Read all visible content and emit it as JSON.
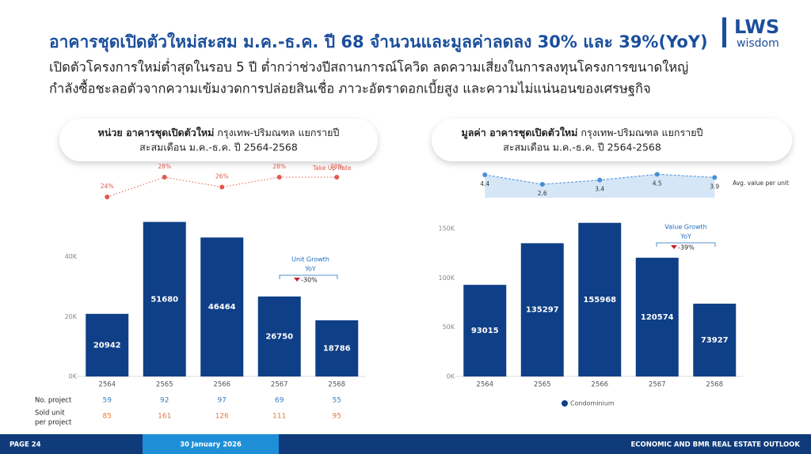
{
  "header": {
    "title": "อาคารชุดเปิดตัวใหม่สะสม ม.ค.-ธ.ค. ปี 68 จำนวนและมูลค่าลดลง 30% และ 39%(YoY)",
    "lines": [
      "เปิดตัวโครงการใหม่ต่ำสุดในรอบ 5 ปี ต่ำกว่าช่วงปีสถานการณ์โควิด ลดความเสี่ยงในการลงทุนโครงการขนาดใหญ่",
      "กำลังซื้อชะลอตัวจากความเข้มงวดการปล่อยสินเชื่อ ภาวะอัตราดอกเบี้ยสูง และความไม่แน่นอนของเศรษฐกิจ"
    ]
  },
  "logo": {
    "brand": "LWS",
    "sub": "wisdom"
  },
  "chart_data": [
    {
      "type": "bar",
      "title_bold": "หน่วย อาคารชุดเปิดตัวใหม่",
      "title": " กรุงเทพ-ปริมณฑล แยกรายปี",
      "subtitle": "สะสมเดือน ม.ค.-ธ.ค. ปี 2564-2568",
      "categories": [
        "2564",
        "2565",
        "2566",
        "2567",
        "2568"
      ],
      "values": [
        20942,
        51680,
        46464,
        26750,
        18786
      ],
      "color": "#0f3f86",
      "ylim": [
        0,
        55000
      ],
      "yticks": [
        {
          "value": 0,
          "label": "0K"
        },
        {
          "value": 20000,
          "label": "20K"
        },
        {
          "value": 40000,
          "label": "40K"
        }
      ],
      "line": {
        "name": "Take Up Rate",
        "color": "#e05a4e",
        "values": [
          24,
          28,
          26,
          28,
          28
        ],
        "value_labels": [
          "24%",
          "28%",
          "26%",
          "28%",
          "28%"
        ],
        "axis": "y2"
      },
      "y2lim": [
        22,
        30
      ],
      "annotation": {
        "lines": [
          "Unit Growth",
          "YoY"
        ],
        "change": "-30%"
      },
      "table": [
        {
          "label": [
            "No. project"
          ],
          "color": "#3a7fc1",
          "values": [
            59,
            92,
            97,
            69,
            55
          ]
        },
        {
          "label": [
            "Sold unit",
            "per project"
          ],
          "color": "#e07b39",
          "values": [
            85,
            161,
            126,
            111,
            95
          ]
        }
      ]
    },
    {
      "type": "bar",
      "title_bold": "มูลค่า อาคารชุดเปิดตัวใหม่",
      "title": " กรุงเทพ-ปริมณฑล แยกรายปี",
      "subtitle": "สะสมเดือน ม.ค.-ธ.ค. ปี 2564-2568",
      "categories": [
        "2564",
        "2565",
        "2566",
        "2567",
        "2568"
      ],
      "series": [
        {
          "name": "Condominium",
          "color": "#0f3f86",
          "values": [
            93015,
            135297,
            155968,
            120574,
            73927
          ]
        }
      ],
      "ylim": [
        0,
        165000
      ],
      "yticks": [
        {
          "value": 0,
          "label": "0K"
        },
        {
          "value": 50000,
          "label": "50K"
        },
        {
          "value": 100000,
          "label": "100K"
        },
        {
          "value": 150000,
          "label": "150K"
        }
      ],
      "line": {
        "name": "Avg. value per unit",
        "color": "#4a8fd6",
        "values": [
          4.4,
          2.6,
          3.4,
          4.5,
          3.9
        ],
        "axis": "y2"
      },
      "y2lim": [
        2,
        5
      ],
      "annotation": {
        "lines": [
          "Value Growth",
          "YoY"
        ],
        "change": "-39%"
      }
    }
  ],
  "footer": {
    "page": "PAGE 24",
    "date": "30 January 2026",
    "section": "ECONOMIC AND BMR REAL ESTATE OUTLOOK"
  }
}
